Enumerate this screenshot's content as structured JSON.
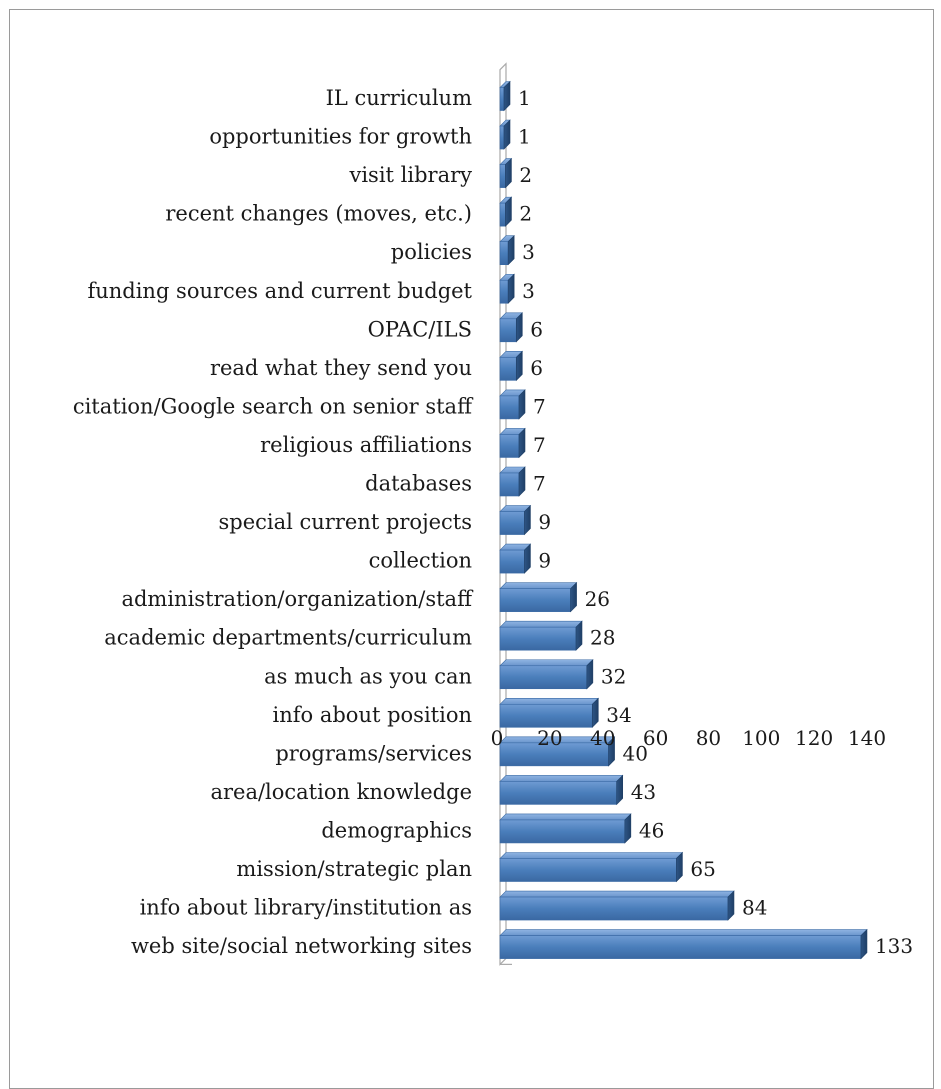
{
  "chart_data": {
    "type": "bar",
    "orientation": "horizontal",
    "style": "3d",
    "title": "",
    "xlabel": "",
    "ylabel": "",
    "xlim": [
      0,
      140
    ],
    "x_ticks": [
      "0",
      "20",
      "40",
      "60",
      "80",
      "100",
      "120",
      "140"
    ],
    "grid": false,
    "legend": "none",
    "bar_color": "#4a7ebb",
    "categories": [
      "IL curriculum",
      "opportunities for growth",
      "visit library",
      "recent changes (moves, etc.)",
      "policies",
      "funding sources and current budget",
      "OPAC/ILS",
      "read what they send you",
      "citation/Google search on senior staff",
      "religious affiliations",
      "databases",
      "special current projects",
      "collection",
      "administration/organization/staff",
      "academic departments/curriculum",
      "as much as you can",
      "info about position",
      "programs/services",
      "area/location knowledge",
      "demographics",
      "mission/strategic plan",
      "info about library/institution as",
      "web site/social networking sites"
    ],
    "values": [
      1,
      1,
      2,
      2,
      3,
      3,
      6,
      6,
      7,
      7,
      7,
      9,
      9,
      26,
      28,
      32,
      34,
      40,
      43,
      46,
      65,
      84,
      133
    ],
    "value_labels": [
      "1",
      "1",
      "2",
      "2",
      "3",
      "3",
      "6",
      "6",
      "7",
      "7",
      "7",
      "9",
      "9",
      "26",
      "28",
      "32",
      "34",
      "40",
      "43",
      "46",
      "65",
      "84",
      "133"
    ]
  }
}
